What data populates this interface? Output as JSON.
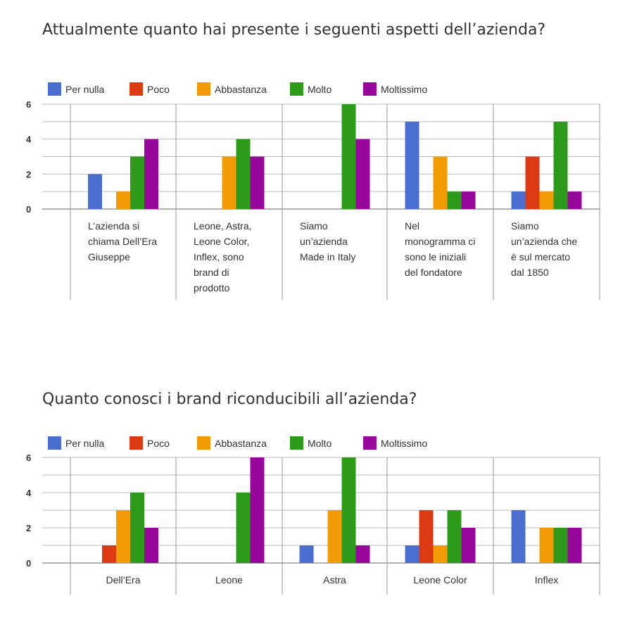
{
  "chart_data": [
    {
      "type": "bar",
      "title": "Attualmente quanto hai presente i seguenti aspetti dell’azienda?",
      "categories": [
        [
          "L’azienda si",
          "chiama Dell’Era",
          "Giuseppe"
        ],
        [
          "Leone, Astra,",
          "Leone Color,",
          "Inflex, sono",
          "brand di",
          "prodotto"
        ],
        [
          "Siamo",
          "un’azienda",
          "Made in Italy"
        ],
        [
          "Nel",
          "monogramma ci",
          "sono le iniziali",
          "del fondatore"
        ],
        [
          "Siamo",
          "un’azienda che",
          "è sul mercato",
          "dal 1850"
        ]
      ],
      "series": [
        {
          "name": "Per nulla",
          "color": "#4a6fd1",
          "values": [
            2,
            0,
            0,
            5,
            1
          ]
        },
        {
          "name": "Poco",
          "color": "#dc3a12",
          "values": [
            0,
            0,
            0,
            0,
            3
          ]
        },
        {
          "name": "Abbastanza",
          "color": "#f39b05",
          "values": [
            1,
            3,
            0,
            3,
            1
          ]
        },
        {
          "name": "Molto",
          "color": "#2e9a1c",
          "values": [
            3,
            4,
            6,
            1,
            5
          ]
        },
        {
          "name": "Moltissimo",
          "color": "#98079b",
          "values": [
            4,
            3,
            4,
            1,
            1
          ]
        }
      ],
      "y_ticks": [
        "0",
        "2",
        "4",
        "6"
      ],
      "ylim": [
        0,
        6
      ],
      "grid": true,
      "legend": "top-left"
    },
    {
      "type": "bar",
      "title": "Quanto conosci i brand riconducibili all’azienda?",
      "categories": [
        [
          "Dell’Era"
        ],
        [
          "Leone"
        ],
        [
          "Astra"
        ],
        [
          "Leone Color"
        ],
        [
          "Inflex"
        ]
      ],
      "series": [
        {
          "name": "Per nulla",
          "color": "#4a6fd1",
          "values": [
            0,
            0,
            1,
            1,
            3
          ]
        },
        {
          "name": "Poco",
          "color": "#dc3a12",
          "values": [
            1,
            0,
            0,
            3,
            0
          ]
        },
        {
          "name": "Abbastanza",
          "color": "#f39b05",
          "values": [
            3,
            0,
            3,
            1,
            2
          ]
        },
        {
          "name": "Molto",
          "color": "#2e9a1c",
          "values": [
            4,
            4,
            6,
            3,
            2
          ]
        },
        {
          "name": "Moltissimo",
          "color": "#98079b",
          "values": [
            2,
            6,
            1,
            2,
            2
          ]
        }
      ],
      "y_ticks": [
        "0",
        "2",
        "4",
        "6"
      ],
      "ylim": [
        0,
        6
      ],
      "grid": true,
      "legend": "top-left"
    }
  ]
}
